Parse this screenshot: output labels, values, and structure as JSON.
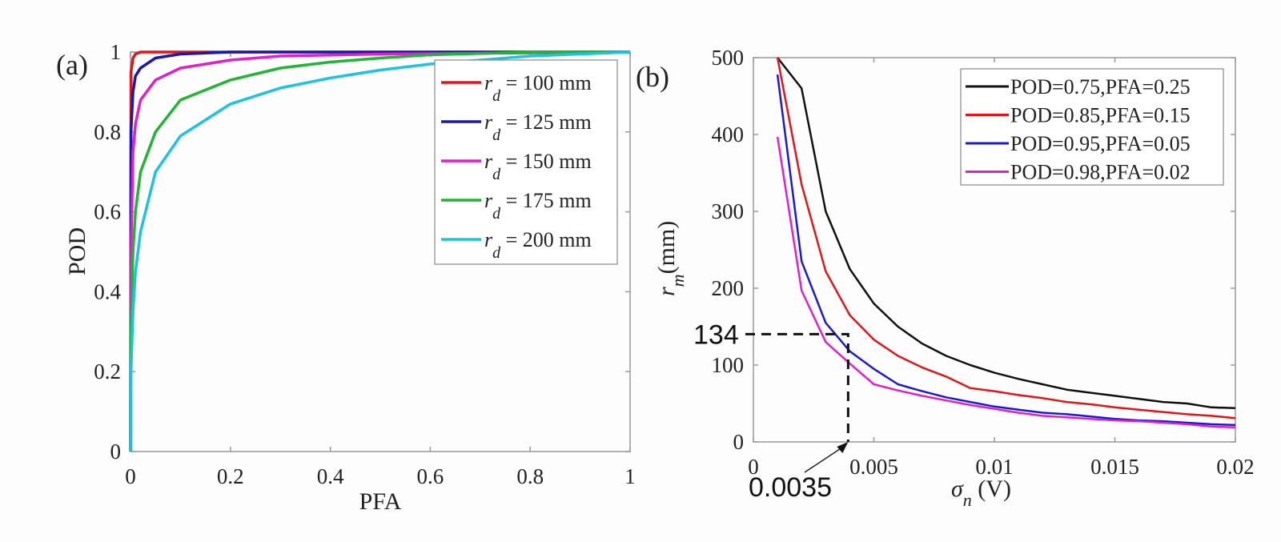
{
  "chart_data": [
    {
      "panel_label": "(a)",
      "type": "line",
      "xlabel": "PFA",
      "ylabel": "POD",
      "xlim": [
        0,
        1
      ],
      "ylim": [
        0,
        1
      ],
      "xticks": [
        "0",
        "0.2",
        "0.4",
        "0.6",
        "0.8",
        "1"
      ],
      "yticks": [
        "0",
        "0.2",
        "0.4",
        "0.6",
        "0.8",
        "1"
      ],
      "grid": false,
      "legend_position": "top-right",
      "series": [
        {
          "name_var": "r",
          "name_sub": "d",
          "name_rest": " = 100 mm",
          "color": "#e0161a",
          "x": [
            0,
            0.001,
            0.005,
            0.01,
            0.02,
            1
          ],
          "y": [
            0,
            0.95,
            0.985,
            0.995,
            1,
            1
          ]
        },
        {
          "name_var": "r",
          "name_sub": "d",
          "name_rest": " = 125 mm",
          "color": "#1a1aa8",
          "x": [
            0,
            0.001,
            0.005,
            0.01,
            0.02,
            0.05,
            0.1,
            0.2,
            1
          ],
          "y": [
            0,
            0.8,
            0.9,
            0.94,
            0.96,
            0.985,
            0.995,
            1,
            1
          ]
        },
        {
          "name_var": "r",
          "name_sub": "d",
          "name_rest": " = 150 mm",
          "color": "#e020c8",
          "x": [
            0,
            0.001,
            0.005,
            0.01,
            0.02,
            0.05,
            0.1,
            0.2,
            0.3,
            0.5,
            1
          ],
          "y": [
            0,
            0.5,
            0.75,
            0.82,
            0.88,
            0.93,
            0.96,
            0.98,
            0.99,
            0.995,
            1
          ]
        },
        {
          "name_var": "r",
          "name_sub": "d",
          "name_rest": " = 175 mm",
          "color": "#22b535",
          "x": [
            0,
            0.001,
            0.005,
            0.01,
            0.02,
            0.05,
            0.1,
            0.2,
            0.3,
            0.4,
            0.5,
            0.6,
            0.8,
            1
          ],
          "y": [
            0,
            0.3,
            0.5,
            0.6,
            0.7,
            0.8,
            0.88,
            0.93,
            0.96,
            0.975,
            0.985,
            0.993,
            1,
            1
          ]
        },
        {
          "name_var": "r",
          "name_sub": "d",
          "name_rest": " = 200 mm",
          "color": "#1ec3e0",
          "x": [
            0,
            0.001,
            0.005,
            0.01,
            0.02,
            0.05,
            0.1,
            0.2,
            0.3,
            0.4,
            0.5,
            0.6,
            0.8,
            1
          ],
          "y": [
            0,
            0.2,
            0.35,
            0.45,
            0.55,
            0.7,
            0.79,
            0.87,
            0.91,
            0.935,
            0.955,
            0.97,
            0.99,
            1
          ]
        }
      ]
    },
    {
      "panel_label": "(b)",
      "type": "line",
      "xlabel_var": "σ",
      "xlabel_sub": "n",
      "xlabel_rest": " (V)",
      "ylabel_var": "r",
      "ylabel_sub": "m",
      "ylabel_rest": "(mm)",
      "xlim": [
        0,
        0.02
      ],
      "ylim": [
        0,
        500
      ],
      "xticks": [
        "0",
        "0.005",
        "0.01",
        "0.015",
        "0.02"
      ],
      "yticks": [
        "0",
        "100",
        "200",
        "300",
        "400",
        "500"
      ],
      "grid": false,
      "legend_position": "top-right",
      "x": [
        0.001,
        0.002,
        0.003,
        0.004,
        0.005,
        0.006,
        0.007,
        0.008,
        0.009,
        0.01,
        0.011,
        0.012,
        0.013,
        0.014,
        0.015,
        0.016,
        0.017,
        0.018,
        0.019,
        0.02
      ],
      "series": [
        {
          "name": "POD=0.75,PFA=0.25",
          "color": "#111111",
          "values": [
            500,
            460,
            300,
            225,
            180,
            150,
            128,
            112,
            100,
            90,
            82,
            75,
            68,
            64,
            60,
            56,
            52,
            50,
            45,
            44
          ]
        },
        {
          "name": "POD=0.85,PFA=0.15",
          "color": "#e0161a",
          "values": [
            500,
            335,
            222,
            165,
            133,
            112,
            97,
            85,
            70,
            66,
            61,
            57,
            52,
            49,
            45,
            42,
            39,
            36,
            34,
            31
          ]
        },
        {
          "name": "POD=0.95,PFA=0.05",
          "color": "#1a1ad0",
          "values": [
            478,
            235,
            155,
            118,
            95,
            75,
            66,
            58,
            52,
            46,
            42,
            38,
            36,
            33,
            30,
            28,
            27,
            25,
            23,
            22
          ]
        },
        {
          "name": "POD=0.98,PFA=0.02",
          "color": "#e020c8",
          "values": [
            397,
            197,
            130,
            102,
            75,
            67,
            60,
            54,
            48,
            43,
            38,
            34,
            32,
            30,
            28,
            27,
            25,
            23,
            20,
            19
          ]
        }
      ],
      "annotation": {
        "x": 0.0035,
        "y": 134,
        "x_label": "0.0035",
        "y_label": "134"
      }
    }
  ]
}
